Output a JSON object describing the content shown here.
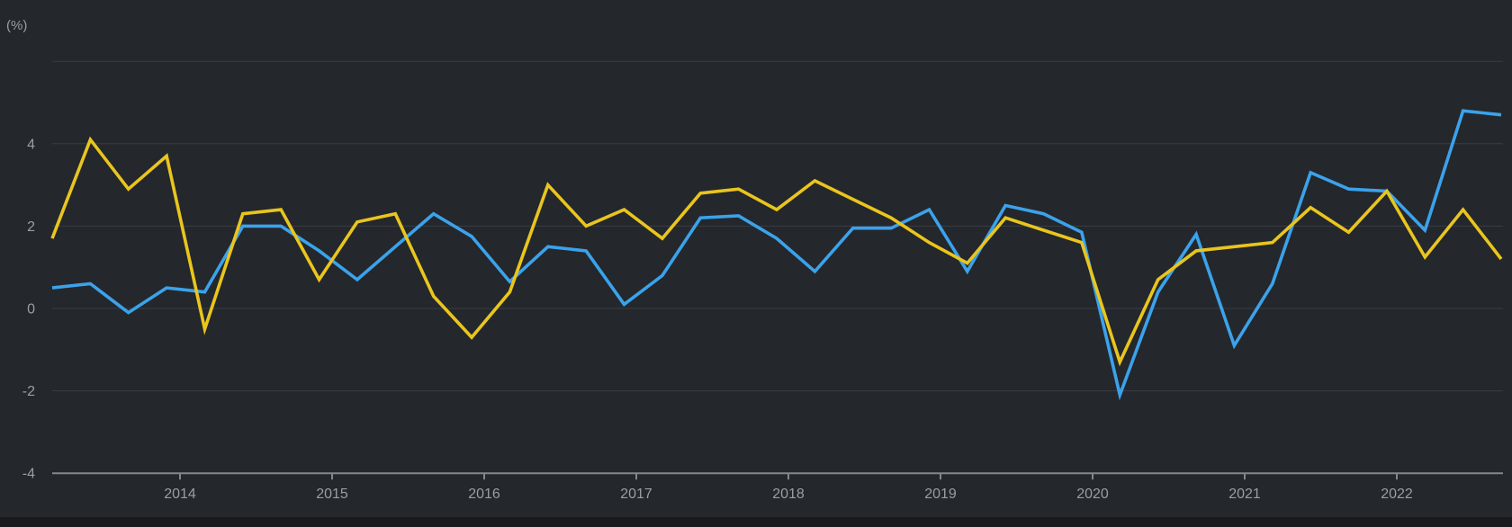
{
  "app": {
    "background_color": "#24272b",
    "bottom_strip_color": "#17191d"
  },
  "chart_data": {
    "type": "line",
    "title": "",
    "unit_label": "(%)",
    "legend": "none",
    "grid_on": true,
    "colors": {
      "grid_color": "#3a3e44",
      "axis_color": "#84878c",
      "label_color": "#9a9ea3"
    },
    "x_axis": {
      "tick_labels": [
        "2014",
        "2015",
        "2016",
        "2017",
        "2018",
        "2019",
        "2020",
        "2021",
        "2022"
      ]
    },
    "y_axis": {
      "tick_labels": [
        "4",
        "2",
        "0",
        "-2",
        "-4"
      ],
      "labeled_values": [
        4,
        2,
        0,
        -2,
        -4
      ],
      "gridline_values": [
        6,
        4,
        2,
        0,
        -2
      ],
      "min": -4,
      "max": 6
    },
    "periods": [
      "2013Q1",
      "2013Q2",
      "2013Q3",
      "2013Q4",
      "2014Q1",
      "2014Q2",
      "2014Q3",
      "2014Q4",
      "2015Q1",
      "2015Q2",
      "2015Q3",
      "2015Q4",
      "2016Q1",
      "2016Q2",
      "2016Q3",
      "2016Q4",
      "2017Q1",
      "2017Q2",
      "2017Q3",
      "2017Q4",
      "2018Q1",
      "2018Q2",
      "2018Q3",
      "2018Q4",
      "2019Q1",
      "2019Q2",
      "2019Q3",
      "2019Q4",
      "2020Q1",
      "2020Q2",
      "2020Q3",
      "2020Q4",
      "2021Q1",
      "2021Q2",
      "2021Q3",
      "2021Q4",
      "2022Q1",
      "2022Q2",
      "2022Q3"
    ],
    "series": [
      {
        "name": "blue-series",
        "color": "#3ba2eb",
        "values": [
          0.5,
          0.6,
          -0.1,
          0.5,
          0.4,
          2.0,
          2.0,
          1.4,
          0.7,
          1.5,
          2.3,
          1.75,
          0.65,
          1.5,
          1.4,
          0.1,
          0.8,
          2.2,
          2.25,
          1.7,
          0.9,
          1.95,
          1.95,
          2.4,
          0.9,
          2.5,
          2.3,
          1.85,
          -2.1,
          0.4,
          1.8,
          -0.9,
          0.6,
          3.3,
          2.9,
          2.85,
          1.9,
          4.8,
          4.7
        ]
      },
      {
        "name": "yellow-series",
        "color": "#e9c51e",
        "values": [
          1.7,
          4.1,
          2.9,
          3.7,
          -0.5,
          2.3,
          2.4,
          0.7,
          2.1,
          2.3,
          0.3,
          -0.7,
          0.4,
          3.0,
          2.0,
          2.4,
          1.7,
          2.8,
          2.9,
          2.4,
          3.1,
          2.65,
          2.2,
          1.6,
          1.1,
          2.2,
          1.9,
          1.6,
          -1.3,
          0.7,
          1.4,
          1.5,
          1.6,
          2.45,
          1.85,
          2.85,
          1.25,
          2.4,
          1.2
        ]
      }
    ]
  }
}
